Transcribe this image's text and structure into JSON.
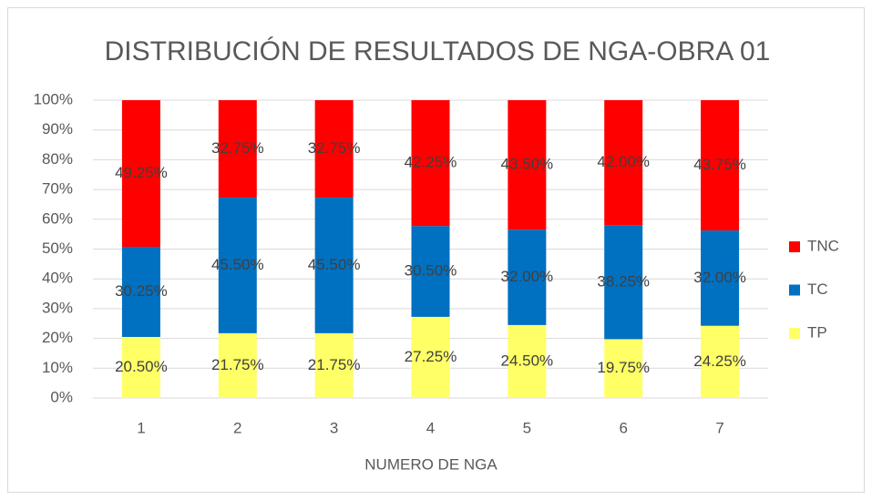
{
  "chart_data": {
    "type": "stacked_bar",
    "title": "DISTRIBUCIÓN DE RESULTADOS DE NGA-OBRA 01",
    "x_label": "NUMERO DE NGA",
    "categories": [
      "1",
      "2",
      "3",
      "4",
      "5",
      "6",
      "7"
    ],
    "series": [
      {
        "name": "TP",
        "color": "#ffff66",
        "values": [
          20.5,
          21.75,
          21.75,
          27.25,
          24.5,
          19.75,
          24.25
        ],
        "value_labels": [
          "20.50%",
          "21.75%",
          "21.75%",
          "27.25%",
          "24.50%",
          "19.75%",
          "24.25%"
        ]
      },
      {
        "name": "TC",
        "color": "#0070c0",
        "values": [
          30.25,
          45.5,
          45.5,
          30.5,
          32,
          38.25,
          32
        ],
        "value_labels": [
          "30.25%",
          "45.50%",
          "45.50%",
          "30.50%",
          "32.00%",
          "38.25%",
          "32.00%"
        ]
      },
      {
        "name": "TNC",
        "color": "#ff0000",
        "values": [
          49.25,
          32.75,
          32.75,
          42.25,
          43.5,
          42,
          43.75
        ],
        "value_labels": [
          "49.25%",
          "32.75%",
          "32.75%",
          "42.25%",
          "43.50%",
          "42.00%",
          "43.75%"
        ]
      }
    ],
    "ylim": [
      0,
      100
    ],
    "yticks": [
      {
        "value": 0,
        "label": "0%"
      },
      {
        "value": 10,
        "label": "10%"
      },
      {
        "value": 20,
        "label": "20%"
      },
      {
        "value": 30,
        "label": "30%"
      },
      {
        "value": 40,
        "label": "40%"
      },
      {
        "value": 50,
        "label": "50%"
      },
      {
        "value": 60,
        "label": "60%"
      },
      {
        "value": 70,
        "label": "70%"
      },
      {
        "value": 80,
        "label": "80%"
      },
      {
        "value": 90,
        "label": "90%"
      },
      {
        "value": 100,
        "label": "100%"
      }
    ],
    "grid": true,
    "legend": "right"
  }
}
